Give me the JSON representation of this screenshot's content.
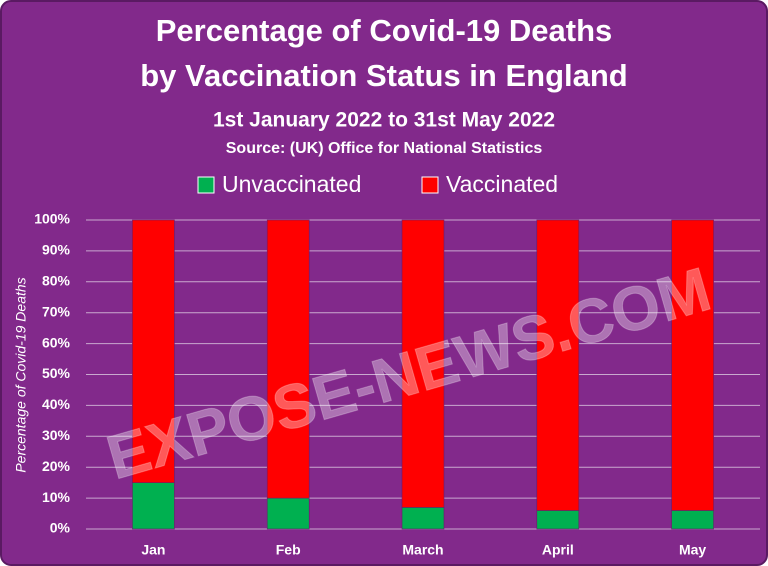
{
  "chart_data": {
    "type": "stacked_bar",
    "title": [
      "Percentage of Covid-19 Deaths",
      "by Vaccination Status in England"
    ],
    "subtitle": "1st January 2022 to 31st May 2022",
    "source": "Source:  (UK) Office for National Statistics",
    "watermark": "EXPOSE-NEWS.COM",
    "y_label": "Percentage of Covid-19 Deaths",
    "categories": [
      "Jan",
      "Feb",
      "March",
      "April",
      "May"
    ],
    "series": [
      {
        "name": "Unvaccinated",
        "color": "#00b050",
        "values": [
          15,
          10,
          7,
          6,
          6
        ]
      },
      {
        "name": "Vaccinated",
        "color": "#ff0000",
        "values": [
          85,
          90,
          93,
          94,
          94
        ]
      }
    ],
    "ylim": [
      0,
      100
    ],
    "yticks": [
      {
        "value": 0,
        "label": "0%"
      },
      {
        "value": 10,
        "label": "10%"
      },
      {
        "value": 20,
        "label": "20%"
      },
      {
        "value": 30,
        "label": "30%"
      },
      {
        "value": 40,
        "label": "40%"
      },
      {
        "value": 50,
        "label": "50%"
      },
      {
        "value": 60,
        "label": "60%"
      },
      {
        "value": 70,
        "label": "70%"
      },
      {
        "value": 80,
        "label": "80%"
      },
      {
        "value": 90,
        "label": "90%"
      },
      {
        "value": 100,
        "label": "100%"
      }
    ],
    "grid": true,
    "legend": "top"
  }
}
